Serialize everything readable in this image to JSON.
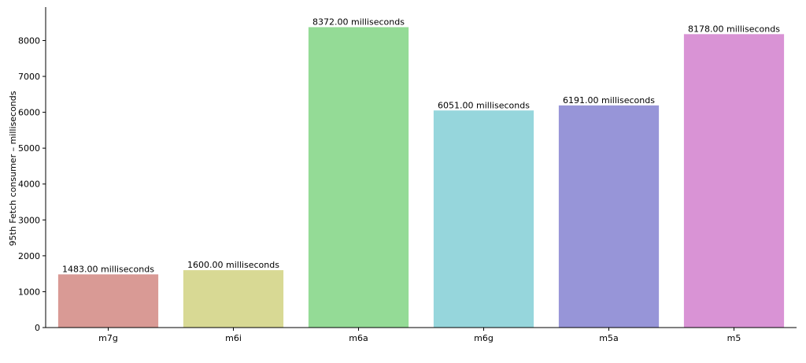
{
  "chart_data": {
    "type": "bar",
    "title": "",
    "xlabel": "",
    "ylabel": "95th Fetch consumer – milliseconds",
    "categories": [
      "m7g",
      "m6i",
      "m6a",
      "m6g",
      "m5a",
      "m5"
    ],
    "values": [
      1483,
      1600,
      8372,
      6051,
      6191,
      8178
    ],
    "data_labels": [
      "1483.00 milliseconds",
      "1600.00 milliseconds",
      "8372.00 milliseconds",
      "6051.00 milliseconds",
      "6191.00 milliseconds",
      "8178.00 milliseconds"
    ],
    "colors": [
      "#d99a95",
      "#d8d994",
      "#94db96",
      "#96d6dc",
      "#9795d8",
      "#d993d5"
    ],
    "ylim": [
      0,
      8800
    ],
    "yticks": [
      0,
      1000,
      2000,
      3000,
      4000,
      5000,
      6000,
      7000,
      8000
    ],
    "grid": false,
    "legend": "none"
  }
}
